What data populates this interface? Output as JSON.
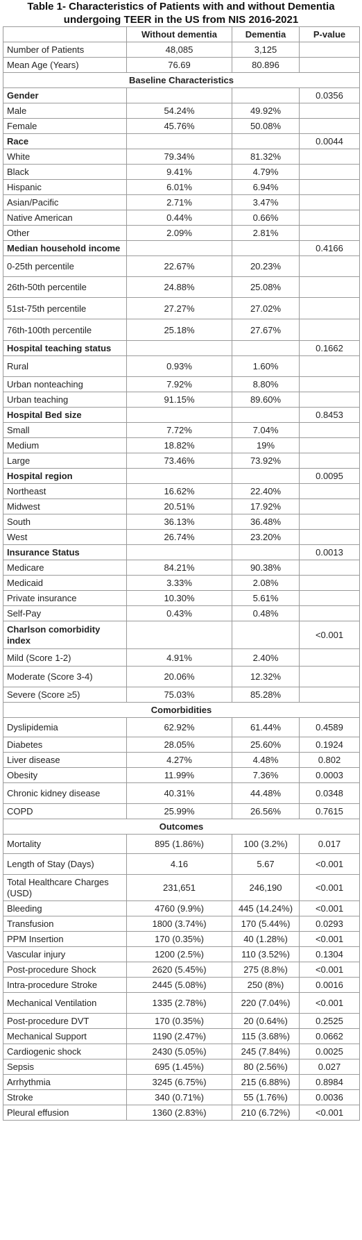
{
  "title": "Table 1- Characteristics of Patients with and without Dementia undergoing TEER in the US from NIS 2016-2021",
  "columns": [
    "",
    "Without dementia",
    "Dementia",
    "P-value"
  ],
  "rows": [
    {
      "type": "data",
      "label": "Number of Patients",
      "a": "48,085",
      "b": "3,125",
      "p": "",
      "h": 22
    },
    {
      "type": "data",
      "label": "Mean Age (Years)",
      "a": "76.69",
      "b": "80.896",
      "p": "",
      "h": 22
    },
    {
      "type": "section",
      "label": "Baseline Characteristics",
      "h": 22
    },
    {
      "type": "group",
      "label": "Gender",
      "p": "0.0356",
      "h": 22
    },
    {
      "type": "data",
      "label": "Male",
      "a": "54.24%",
      "b": "49.92%",
      "p": "",
      "h": 22
    },
    {
      "type": "data",
      "label": "Female",
      "a": "45.76%",
      "b": "50.08%",
      "p": "",
      "h": 22
    },
    {
      "type": "group",
      "label": "Race",
      "p": "0.0044",
      "h": 22
    },
    {
      "type": "data",
      "label": "White",
      "a": "79.34%",
      "b": "81.32%",
      "p": "",
      "h": 22
    },
    {
      "type": "data",
      "label": "Black",
      "a": "9.41%",
      "b": "4.79%",
      "p": "",
      "h": 22
    },
    {
      "type": "data",
      "label": "Hispanic",
      "a": "6.01%",
      "b": "6.94%",
      "p": "",
      "h": 22
    },
    {
      "type": "data",
      "label": "Asian/Pacific",
      "a": "2.71%",
      "b": "3.47%",
      "p": "",
      "h": 22
    },
    {
      "type": "data",
      "label": "Native American",
      "a": "0.44%",
      "b": "0.66%",
      "p": "",
      "h": 22
    },
    {
      "type": "data",
      "label": "Other",
      "a": "2.09%",
      "b": "2.81%",
      "p": "",
      "h": 22
    },
    {
      "type": "group",
      "label": "Median household income",
      "p": "0.4166",
      "h": 22
    },
    {
      "type": "data",
      "label": "0-25th percentile",
      "a": "22.67%",
      "b": "20.23%",
      "p": "",
      "h": 30
    },
    {
      "type": "data",
      "label": "26th-50th percentile",
      "a": "24.88%",
      "b": "25.08%",
      "p": "",
      "h": 30
    },
    {
      "type": "data",
      "label": "51st-75th percentile",
      "a": "27.27%",
      "b": "27.02%",
      "p": "",
      "h": 31
    },
    {
      "type": "data",
      "label": "76th-100th percentile",
      "a": "25.18%",
      "b": "27.67%",
      "p": "",
      "h": 31
    },
    {
      "type": "group",
      "label": "Hospital teaching status",
      "p": "0.1662",
      "h": 22
    },
    {
      "type": "data",
      "label": "Rural",
      "a": "0.93%",
      "b": "1.60%",
      "p": "",
      "h": 30
    },
    {
      "type": "data",
      "label": "Urban nonteaching",
      "a": "7.92%",
      "b": "8.80%",
      "p": "",
      "h": 22
    },
    {
      "type": "data",
      "label": "Urban teaching",
      "a": "91.15%",
      "b": "89.60%",
      "p": "",
      "h": 22
    },
    {
      "type": "group",
      "label": "Hospital Bed size",
      "p": "0.8453",
      "h": 22
    },
    {
      "type": "data",
      "label": "Small",
      "a": "7.72%",
      "b": "7.04%",
      "p": "",
      "h": 22
    },
    {
      "type": "data",
      "label": "Medium",
      "a": "18.82%",
      "b": "19%",
      "p": "",
      "h": 22
    },
    {
      "type": "data",
      "label": "Large",
      "a": "73.46%",
      "b": "73.92%",
      "p": "",
      "h": 22
    },
    {
      "type": "group",
      "label": "Hospital region",
      "p": "0.0095",
      "h": 22
    },
    {
      "type": "data",
      "label": "Northeast",
      "a": "16.62%",
      "b": "22.40%",
      "p": "",
      "h": 22
    },
    {
      "type": "data",
      "label": "Midwest",
      "a": "20.51%",
      "b": "17.92%",
      "p": "",
      "h": 22
    },
    {
      "type": "data",
      "label": "South",
      "a": "36.13%",
      "b": "36.48%",
      "p": "",
      "h": 22
    },
    {
      "type": "data",
      "label": "West",
      "a": "26.74%",
      "b": "23.20%",
      "p": "",
      "h": 22
    },
    {
      "type": "group",
      "label": "Insurance Status",
      "p": "0.0013",
      "h": 22
    },
    {
      "type": "data",
      "label": "Medicare",
      "a": "84.21%",
      "b": "90.38%",
      "p": "",
      "h": 22
    },
    {
      "type": "data",
      "label": "Medicaid",
      "a": "3.33%",
      "b": "2.08%",
      "p": "",
      "h": 22
    },
    {
      "type": "data",
      "label": "Private insurance",
      "a": "10.30%",
      "b": "5.61%",
      "p": "",
      "h": 22
    },
    {
      "type": "data",
      "label": "Self-Pay",
      "a": "0.43%",
      "b": "0.48%",
      "p": "",
      "h": 22
    },
    {
      "type": "group",
      "label": "Charlson comorbidity index",
      "p": "<0.001",
      "h": 40,
      "wrap": true
    },
    {
      "type": "data",
      "label": "Mild (Score 1-2)",
      "a": "4.91%",
      "b": "2.40%",
      "p": "",
      "h": 25
    },
    {
      "type": "data",
      "label": "Moderate (Score 3-4)",
      "a": "20.06%",
      "b": "12.32%",
      "p": "",
      "h": 30
    },
    {
      "type": "data",
      "label": "Severe (Score ≥5)",
      "a": "75.03%",
      "b": "85.28%",
      "p": "",
      "h": 22
    },
    {
      "type": "section",
      "label": "Comorbidities",
      "h": 22
    },
    {
      "type": "data",
      "label": "Dyslipidemia",
      "a": "62.92%",
      "b": "61.44%",
      "p": "0.4589",
      "h": 28
    },
    {
      "type": "data",
      "label": "Diabetes",
      "a": "28.05%",
      "b": "25.60%",
      "p": "0.1924",
      "h": 22
    },
    {
      "type": "data",
      "label": "Liver disease",
      "a": "4.27%",
      "b": "4.48%",
      "p": "0.802",
      "h": 22
    },
    {
      "type": "data",
      "label": "Obesity",
      "a": "11.99%",
      "b": "7.36%",
      "p": "0.0003",
      "h": 22
    },
    {
      "type": "data",
      "label": "Chronic kidney disease",
      "a": "40.31%",
      "b": "44.48%",
      "p": "0.0348",
      "h": 30
    },
    {
      "type": "data",
      "label": "COPD",
      "a": "25.99%",
      "b": "26.56%",
      "p": "0.7615",
      "h": 22
    },
    {
      "type": "section",
      "label": "Outcomes",
      "h": 22
    },
    {
      "type": "data",
      "label": "Mortality",
      "a": "895 (1.86%)",
      "b": "100 (3.2%)",
      "p": "0.017",
      "h": 28
    },
    {
      "type": "data",
      "label": "Length of Stay (Days)",
      "a": "4.16",
      "b": "5.67",
      "p": "<0.001",
      "h": 30
    },
    {
      "type": "data",
      "label": "Total Healthcare Charges (USD)",
      "a": "231,651",
      "b": "246,190",
      "p": "<0.001",
      "h": 38,
      "wrap": true
    },
    {
      "type": "data",
      "label": "Bleeding",
      "a": "4760 (9.9%)",
      "b": "445 (14.24%)",
      "p": "<0.001",
      "h": 22
    },
    {
      "type": "data",
      "label": "Transfusion",
      "a": "1800 (3.74%)",
      "b": "170 (5.44%)",
      "p": "0.0293",
      "h": 22
    },
    {
      "type": "data",
      "label": "PPM Insertion",
      "a": "170 (0.35%)",
      "b": "40 (1.28%)",
      "p": "<0.001",
      "h": 22
    },
    {
      "type": "data",
      "label": "Vascular injury",
      "a": "1200 (2.5%)",
      "b": "110 (3.52%)",
      "p": "0.1304",
      "h": 22
    },
    {
      "type": "data",
      "label": "Post-procedure Shock",
      "a": "2620 (5.45%)",
      "b": "275 (8.8%)",
      "p": "<0.001",
      "h": 22
    },
    {
      "type": "data",
      "label": "Intra-procedure Stroke",
      "a": "2445 (5.08%)",
      "b": "250 (8%)",
      "p": "0.0016",
      "h": 22
    },
    {
      "type": "data",
      "label": "Mechanical Ventilation",
      "a": "1335 (2.78%)",
      "b": "220 (7.04%)",
      "p": "<0.001",
      "h": 30
    },
    {
      "type": "data",
      "label": "Post-procedure DVT",
      "a": "170 (0.35%)",
      "b": "20 (0.64%)",
      "p": "0.2525",
      "h": 22
    },
    {
      "type": "data",
      "label": "Mechanical Support",
      "a": "1190 (2.47%)",
      "b": "115 (3.68%)",
      "p": "0.0662",
      "h": 22
    },
    {
      "type": "data",
      "label": "Cardiogenic shock",
      "a": "2430 (5.05%)",
      "b": "245 (7.84%)",
      "p": "0.0025",
      "h": 22
    },
    {
      "type": "data",
      "label": "Sepsis",
      "a": "695 (1.45%)",
      "b": "80 (2.56%)",
      "p": "0.027",
      "h": 22
    },
    {
      "type": "data",
      "label": "Arrhythmia",
      "a": "3245 (6.75%)",
      "b": "215 (6.88%)",
      "p": "0.8984",
      "h": 22
    },
    {
      "type": "data",
      "label": "Stroke",
      "a": "340 (0.71%)",
      "b": "55 (1.76%)",
      "p": "0.0036",
      "h": 22
    },
    {
      "type": "data",
      "label": "Pleural effusion",
      "a": "1360 (2.83%)",
      "b": "210 (6.72%)",
      "p": "<0.001",
      "h": 22
    }
  ]
}
